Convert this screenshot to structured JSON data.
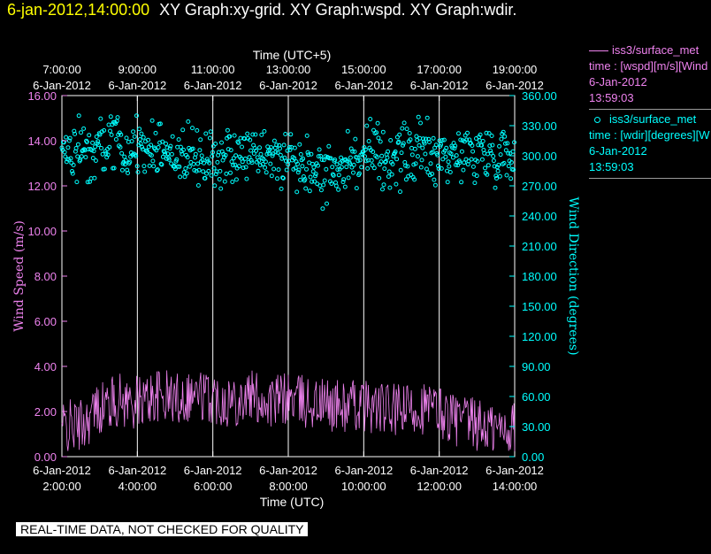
{
  "header": {
    "timestamp": "6-jan-2012,14:00:00",
    "graphs": "XY Graph:xy-grid.  XY Graph:wspd.  XY Graph:wdir."
  },
  "legend": {
    "wspd": {
      "name": "iss3/surface_met",
      "line1": "time : [wspd][m/s][Wind",
      "date": "6-Jan-2012",
      "time": "13:59:03"
    },
    "wdir": {
      "name": "iss3/surface_met",
      "line1": "time : [wdir][degrees][W",
      "date": "6-Jan-2012",
      "time": "13:59:03"
    }
  },
  "banner": "REAL-TIME DATA, NOT CHECKED FOR QUALITY",
  "colors": {
    "wspd": "#ee82ee",
    "wdir": "#00ffff",
    "grid": "#ffffff",
    "stamp": "#ffff00"
  },
  "chart_data": {
    "type": "line",
    "top_axis_title": "Time (UTC+5)",
    "xlabel": "Time (UTC)",
    "ylabel_left": "Wind Speed (m/s)",
    "ylabel_right": "Wind Direction (degrees)",
    "xlim": [
      "6-Jan-2012 2:00:00",
      "6-Jan-2012 14:00:00"
    ],
    "x_ticks_bottom": [
      {
        "date": "6-Jan-2012",
        "time": "2:00:00",
        "hour": 2
      },
      {
        "date": "6-Jan-2012",
        "time": "4:00:00",
        "hour": 4
      },
      {
        "date": "6-Jan-2012",
        "time": "6:00:00",
        "hour": 6
      },
      {
        "date": "6-Jan-2012",
        "time": "8:00:00",
        "hour": 8
      },
      {
        "date": "6-Jan-2012",
        "time": "10:00:00",
        "hour": 10
      },
      {
        "date": "6-Jan-2012",
        "time": "12:00:00",
        "hour": 12
      },
      {
        "date": "6-Jan-2012",
        "time": "14:00:00",
        "hour": 14
      }
    ],
    "x_ticks_top": [
      {
        "time": "7:00:00",
        "date": "6-Jan-2012",
        "hour": 2
      },
      {
        "time": "9:00:00",
        "date": "6-Jan-2012",
        "hour": 4
      },
      {
        "time": "11:00:00",
        "date": "6-Jan-2012",
        "hour": 6
      },
      {
        "time": "13:00:00",
        "date": "6-Jan-2012",
        "hour": 8
      },
      {
        "time": "15:00:00",
        "date": "6-Jan-2012",
        "hour": 10
      },
      {
        "time": "17:00:00",
        "date": "6-Jan-2012",
        "hour": 12
      },
      {
        "time": "19:00:00",
        "date": "6-Jan-2012",
        "hour": 14
      }
    ],
    "y_left": {
      "min": 0,
      "max": 16,
      "ticks": [
        "0.00",
        "2.00",
        "4.00",
        "6.00",
        "8.00",
        "10.00",
        "12.00",
        "14.00",
        "16.00"
      ]
    },
    "y_right": {
      "min": 0,
      "max": 360,
      "ticks": [
        "0.00",
        "30.00",
        "60.00",
        "90.00",
        "120.00",
        "150.00",
        "180.00",
        "210.00",
        "240.00",
        "270.00",
        "300.00",
        "330.00",
        "360.00"
      ]
    },
    "vertical_grid_hours": [
      4,
      6,
      8,
      10,
      12
    ],
    "series": [
      {
        "name": "iss3/surface_met",
        "variable": "wspd",
        "style": "line",
        "axis": "left",
        "x_hours": [
          2.0,
          2.5,
          3.0,
          3.5,
          4.0,
          4.5,
          5.0,
          5.5,
          6.0,
          6.5,
          7.0,
          7.5,
          8.0,
          8.5,
          9.0,
          9.5,
          10.0,
          10.5,
          11.0,
          11.5,
          12.0,
          12.5,
          13.0,
          13.5,
          14.0
        ],
        "values": [
          1.3,
          1.4,
          2.2,
          2.5,
          2.4,
          2.7,
          2.6,
          2.8,
          2.6,
          2.5,
          2.7,
          2.4,
          2.6,
          2.4,
          2.3,
          2.2,
          2.3,
          2.1,
          2.0,
          2.2,
          2.0,
          1.6,
          1.4,
          1.2,
          1.3
        ]
      },
      {
        "name": "iss3/surface_met",
        "variable": "wdir",
        "style": "scatter",
        "axis": "right",
        "x_hours": [
          2.0,
          2.5,
          3.0,
          3.5,
          4.0,
          4.5,
          5.0,
          5.5,
          6.0,
          6.5,
          7.0,
          7.5,
          8.0,
          8.5,
          9.0,
          9.5,
          10.0,
          10.5,
          11.0,
          11.5,
          12.0,
          12.5,
          13.0,
          13.5,
          14.0
        ],
        "values": [
          305,
          305,
          308,
          312,
          312,
          308,
          300,
          300,
          298,
          300,
          303,
          300,
          300,
          290,
          285,
          292,
          300,
          298,
          300,
          305,
          302,
          300,
          305,
          302,
          302
        ]
      }
    ]
  }
}
